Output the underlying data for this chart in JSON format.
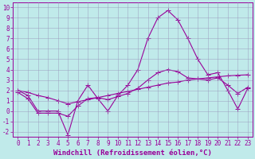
{
  "title": "",
  "xlabel": "Windchill (Refroidissement éolien,°C)",
  "ylabel": "",
  "bg_color": "#c0eaea",
  "line_color": "#990099",
  "grid_color": "#9999bb",
  "xlim": [
    -0.5,
    23.5
  ],
  "ylim": [
    -2.5,
    10.5
  ],
  "xticks": [
    0,
    1,
    2,
    3,
    4,
    5,
    6,
    7,
    8,
    9,
    10,
    11,
    12,
    13,
    14,
    15,
    16,
    17,
    18,
    19,
    20,
    21,
    22,
    23
  ],
  "yticks": [
    -2,
    -1,
    0,
    1,
    2,
    3,
    4,
    5,
    6,
    7,
    8,
    9,
    10
  ],
  "line1_x": [
    0,
    1,
    2,
    3,
    4,
    5,
    6,
    7,
    8,
    9,
    10,
    11,
    12,
    13,
    14,
    15,
    16,
    17,
    18,
    19,
    20,
    21,
    22,
    23
  ],
  "line1_y": [
    2.0,
    1.5,
    0.0,
    0.0,
    0.0,
    -2.3,
    1.0,
    2.5,
    1.2,
    0.0,
    1.5,
    2.5,
    4.0,
    7.0,
    9.0,
    9.7,
    8.8,
    7.0,
    5.0,
    3.5,
    3.7,
    2.0,
    0.2,
    2.2
  ],
  "line2_x": [
    0,
    1,
    2,
    3,
    4,
    5,
    6,
    7,
    8,
    9,
    10,
    11,
    12,
    13,
    14,
    15,
    16,
    17,
    18,
    19,
    20,
    21,
    22,
    23
  ],
  "line2_y": [
    2.0,
    1.8,
    1.5,
    1.3,
    1.0,
    0.7,
    0.9,
    1.1,
    1.3,
    1.5,
    1.7,
    1.9,
    2.1,
    2.3,
    2.5,
    2.7,
    2.8,
    3.0,
    3.1,
    3.2,
    3.3,
    3.4,
    3.45,
    3.5
  ],
  "line3_x": [
    0,
    1,
    2,
    3,
    4,
    5,
    6,
    7,
    8,
    9,
    10,
    11,
    12,
    13,
    14,
    15,
    16,
    17,
    18,
    19,
    20,
    21,
    22,
    23
  ],
  "line3_y": [
    1.8,
    1.2,
    -0.2,
    -0.2,
    -0.2,
    -0.5,
    0.5,
    1.2,
    1.3,
    1.1,
    1.4,
    1.7,
    2.2,
    3.0,
    3.7,
    4.0,
    3.8,
    3.2,
    3.1,
    3.0,
    3.2,
    2.5,
    1.7,
    2.3
  ],
  "marker_size": 3,
  "line_width": 0.8,
  "tick_fontsize": 5.5,
  "label_fontsize": 6.5
}
